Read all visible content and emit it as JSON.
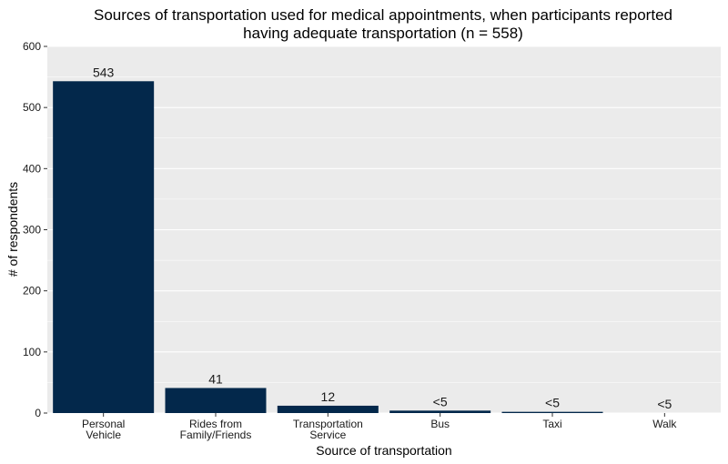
{
  "chart_data": {
    "type": "bar",
    "title_lines": [
      "Sources of transportation used for medical appointments, when participants reported",
      "having adequate transportation (n = 558)"
    ],
    "xlabel": "Source of transportation",
    "ylabel": "# of respondents",
    "categories": [
      [
        "Personal",
        "Vehicle"
      ],
      [
        "Rides from",
        "Family/Friends"
      ],
      [
        "Transportation",
        "Service"
      ],
      [
        "Bus"
      ],
      [
        "Taxi"
      ],
      [
        "Walk"
      ]
    ],
    "values": [
      543,
      41,
      12,
      4,
      2,
      0
    ],
    "data_labels": [
      "543",
      "41",
      "12",
      "<5",
      "<5",
      "<5"
    ],
    "ylim": [
      0,
      600
    ],
    "yticks": [
      0,
      100,
      200,
      300,
      400,
      500,
      600
    ],
    "grid": true,
    "legend": "none",
    "colors": {
      "bar": "#03284b",
      "panel": "#ebebeb",
      "grid": "#ffffff"
    }
  }
}
